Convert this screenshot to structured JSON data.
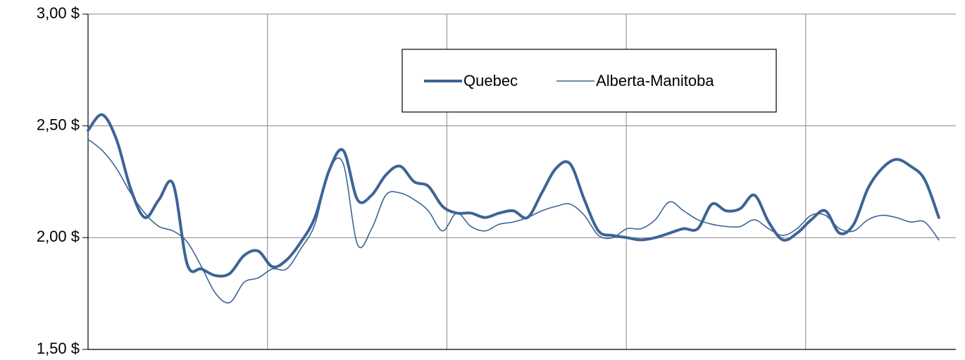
{
  "chart_data": {
    "type": "line",
    "x": [
      0,
      1,
      2,
      3,
      4,
      5,
      6,
      7,
      8,
      9,
      10,
      11,
      12,
      13,
      14,
      15,
      16,
      17,
      18,
      19,
      20,
      21,
      22,
      23,
      24,
      25,
      26,
      27,
      28,
      29,
      30,
      31,
      32,
      33,
      34,
      35,
      36,
      37,
      38,
      39,
      40,
      41,
      42,
      43,
      44,
      45,
      46,
      47,
      48,
      49,
      50,
      51,
      52,
      53,
      54,
      55,
      56,
      57,
      58,
      59,
      60
    ],
    "xlim": [
      0,
      61.2
    ],
    "ylim": [
      1.5,
      3.0
    ],
    "yticks": [
      {
        "value": 1.5,
        "label": "1,50 $"
      },
      {
        "value": 2.0,
        "label": "2,00 $"
      },
      {
        "value": 2.5,
        "label": "2,50 $"
      },
      {
        "value": 3.0,
        "label": "3,00 $"
      }
    ],
    "grid": true,
    "legend": "top-center",
    "series": [
      {
        "name": "Quebec",
        "color": "#3d6496",
        "width": 4,
        "values": [
          2.48,
          2.55,
          2.44,
          2.22,
          2.09,
          2.17,
          2.24,
          1.88,
          1.86,
          1.83,
          1.84,
          1.92,
          1.94,
          1.87,
          1.9,
          1.98,
          2.09,
          2.3,
          2.39,
          2.17,
          2.19,
          2.28,
          2.32,
          2.25,
          2.23,
          2.14,
          2.11,
          2.11,
          2.09,
          2.11,
          2.12,
          2.09,
          2.2,
          2.31,
          2.33,
          2.17,
          2.03,
          2.01,
          2.0,
          1.99,
          2.0,
          2.02,
          2.04,
          2.04,
          2.15,
          2.12,
          2.13,
          2.19,
          2.07,
          1.99,
          2.02,
          2.08,
          2.12,
          2.02,
          2.06,
          2.22,
          2.31,
          2.35,
          2.32,
          2.26,
          2.09
        ]
      },
      {
        "name": "Alberta-Manitoba",
        "color": "#3d6496",
        "width": 1.6,
        "values": [
          2.44,
          2.39,
          2.31,
          2.2,
          2.11,
          2.05,
          2.03,
          1.98,
          1.87,
          1.75,
          1.71,
          1.8,
          1.82,
          1.86,
          1.86,
          1.95,
          2.06,
          2.3,
          2.33,
          1.97,
          2.04,
          2.19,
          2.2,
          2.17,
          2.12,
          2.03,
          2.11,
          2.05,
          2.03,
          2.06,
          2.07,
          2.09,
          2.12,
          2.14,
          2.15,
          2.1,
          2.01,
          2.0,
          2.04,
          2.04,
          2.08,
          2.16,
          2.12,
          2.08,
          2.06,
          2.05,
          2.05,
          2.08,
          2.04,
          2.01,
          2.04,
          2.1,
          2.1,
          2.04,
          2.03,
          2.08,
          2.1,
          2.09,
          2.07,
          2.07,
          1.99
        ]
      }
    ]
  }
}
